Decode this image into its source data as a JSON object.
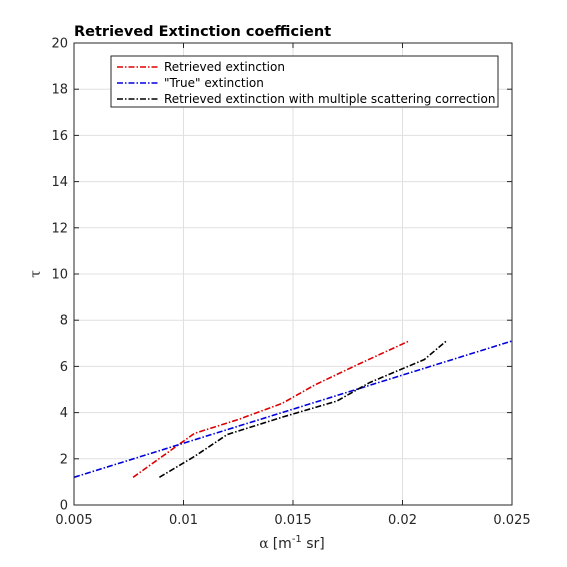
{
  "chart_data": {
    "type": "line",
    "title": "Retrieved Extinction coefficient",
    "xlabel": {
      "symbol": "α",
      "unit_prefix": "[m",
      "unit_exp": "-1",
      "unit_suffix": " sr]"
    },
    "ylabel": "τ",
    "xlim": [
      0.005,
      0.025
    ],
    "ylim": [
      0,
      20
    ],
    "xticks": [
      0.005,
      0.01,
      0.015,
      0.02,
      0.025
    ],
    "xtick_labels": [
      "0.005",
      "0.01",
      "0.015",
      "0.02",
      "0.025"
    ],
    "yticks": [
      0,
      2,
      4,
      6,
      8,
      10,
      12,
      14,
      16,
      18,
      20
    ],
    "ytick_labels": [
      "0",
      "2",
      "4",
      "6",
      "8",
      "10",
      "12",
      "14",
      "16",
      "18",
      "20"
    ],
    "grid": true,
    "legend_position": "top-center",
    "series": [
      {
        "name": "Retrieved extinction",
        "color": "#dd0000",
        "style": "dash-dot",
        "points": [
          [
            0.0077,
            1.2
          ],
          [
            0.0105,
            3.1
          ],
          [
            0.0125,
            3.7
          ],
          [
            0.0145,
            4.4
          ],
          [
            0.016,
            5.2
          ],
          [
            0.018,
            6.1
          ],
          [
            0.0203,
            7.1
          ]
        ]
      },
      {
        "name": "\"True\" extinction",
        "color": "#0000dd",
        "style": "dash-dot",
        "points": [
          [
            0.005,
            1.2
          ],
          [
            0.025,
            7.1
          ]
        ]
      },
      {
        "name": "Retrieved extinction with multiple scattering correction",
        "color": "#000000",
        "style": "dash-dot",
        "points": [
          [
            0.0089,
            1.2
          ],
          [
            0.0105,
            2.1
          ],
          [
            0.012,
            3.05
          ],
          [
            0.0145,
            3.8
          ],
          [
            0.017,
            4.5
          ],
          [
            0.0185,
            5.3
          ],
          [
            0.021,
            6.3
          ],
          [
            0.022,
            7.1
          ]
        ]
      }
    ]
  }
}
